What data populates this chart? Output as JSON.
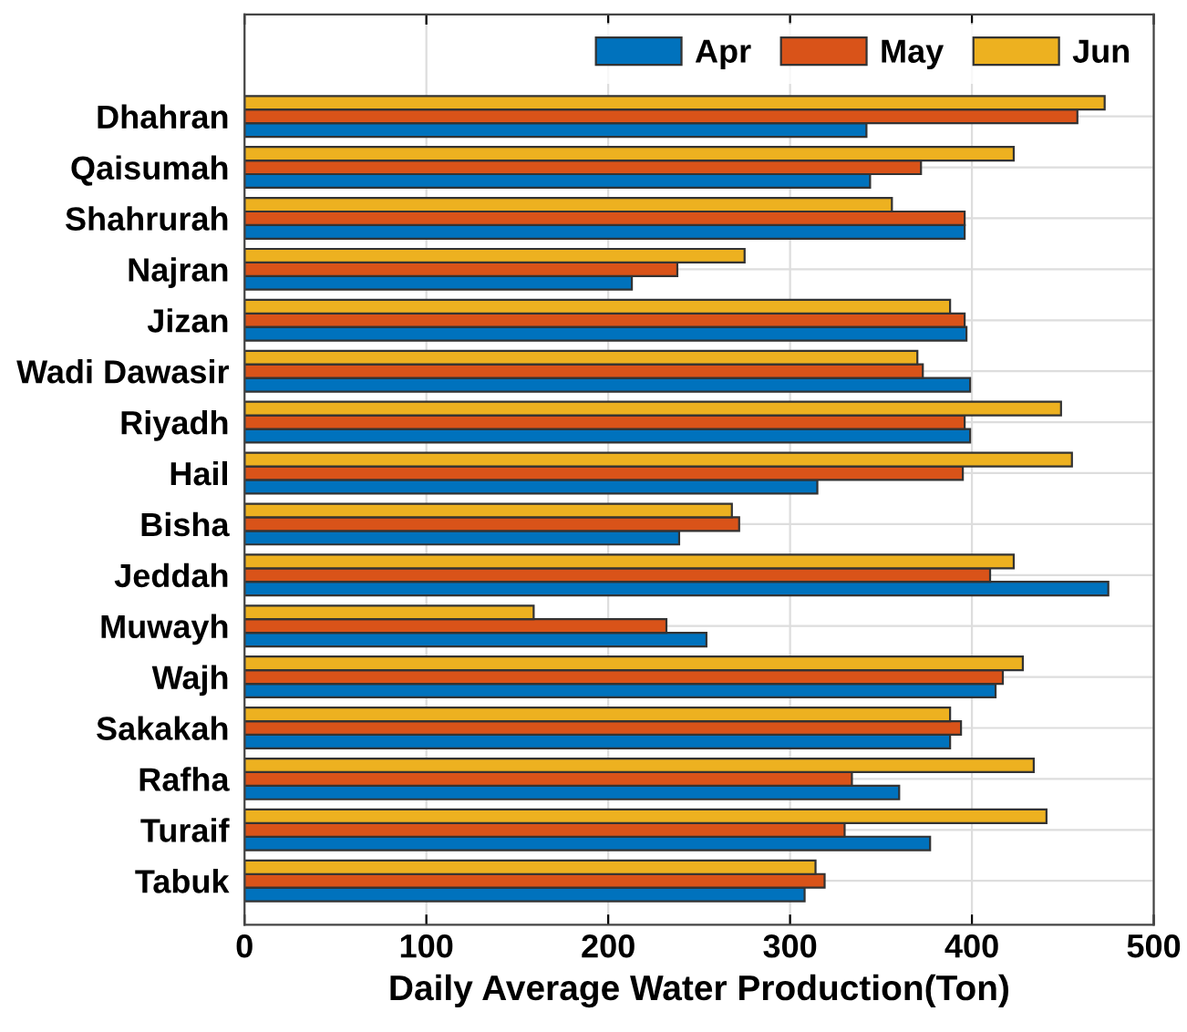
{
  "chart_data": {
    "type": "bar",
    "orientation": "horizontal",
    "xlabel": "Daily Average Water Production(Ton)",
    "categories": [
      "Dhahran",
      "Qaisumah",
      "Shahrurah",
      "Najran",
      "Jizan",
      "Wadi Dawasir",
      "Riyadh",
      "Hail",
      "Bisha",
      "Jeddah",
      "Muwayh",
      "Wajh",
      "Sakakah",
      "Rafha",
      "Turaif",
      "Tabuk"
    ],
    "series": [
      {
        "name": "Apr",
        "color": "#0072bd",
        "values": [
          342,
          344,
          396,
          213,
          397,
          399,
          399,
          315,
          239,
          475,
          254,
          413,
          388,
          360,
          377,
          308
        ]
      },
      {
        "name": "May",
        "color": "#d95319",
        "values": [
          458,
          372,
          396,
          238,
          396,
          373,
          396,
          395,
          272,
          410,
          232,
          417,
          394,
          334,
          330,
          319
        ]
      },
      {
        "name": "Jun",
        "color": "#edb120",
        "values": [
          473,
          423,
          356,
          275,
          388,
          370,
          449,
          455,
          268,
          423,
          159,
          428,
          388,
          434,
          441,
          314
        ]
      }
    ],
    "xlim": [
      0,
      500
    ],
    "xticks": [
      0,
      100,
      200,
      300,
      400,
      500
    ],
    "grid": true,
    "legend": "top right"
  }
}
